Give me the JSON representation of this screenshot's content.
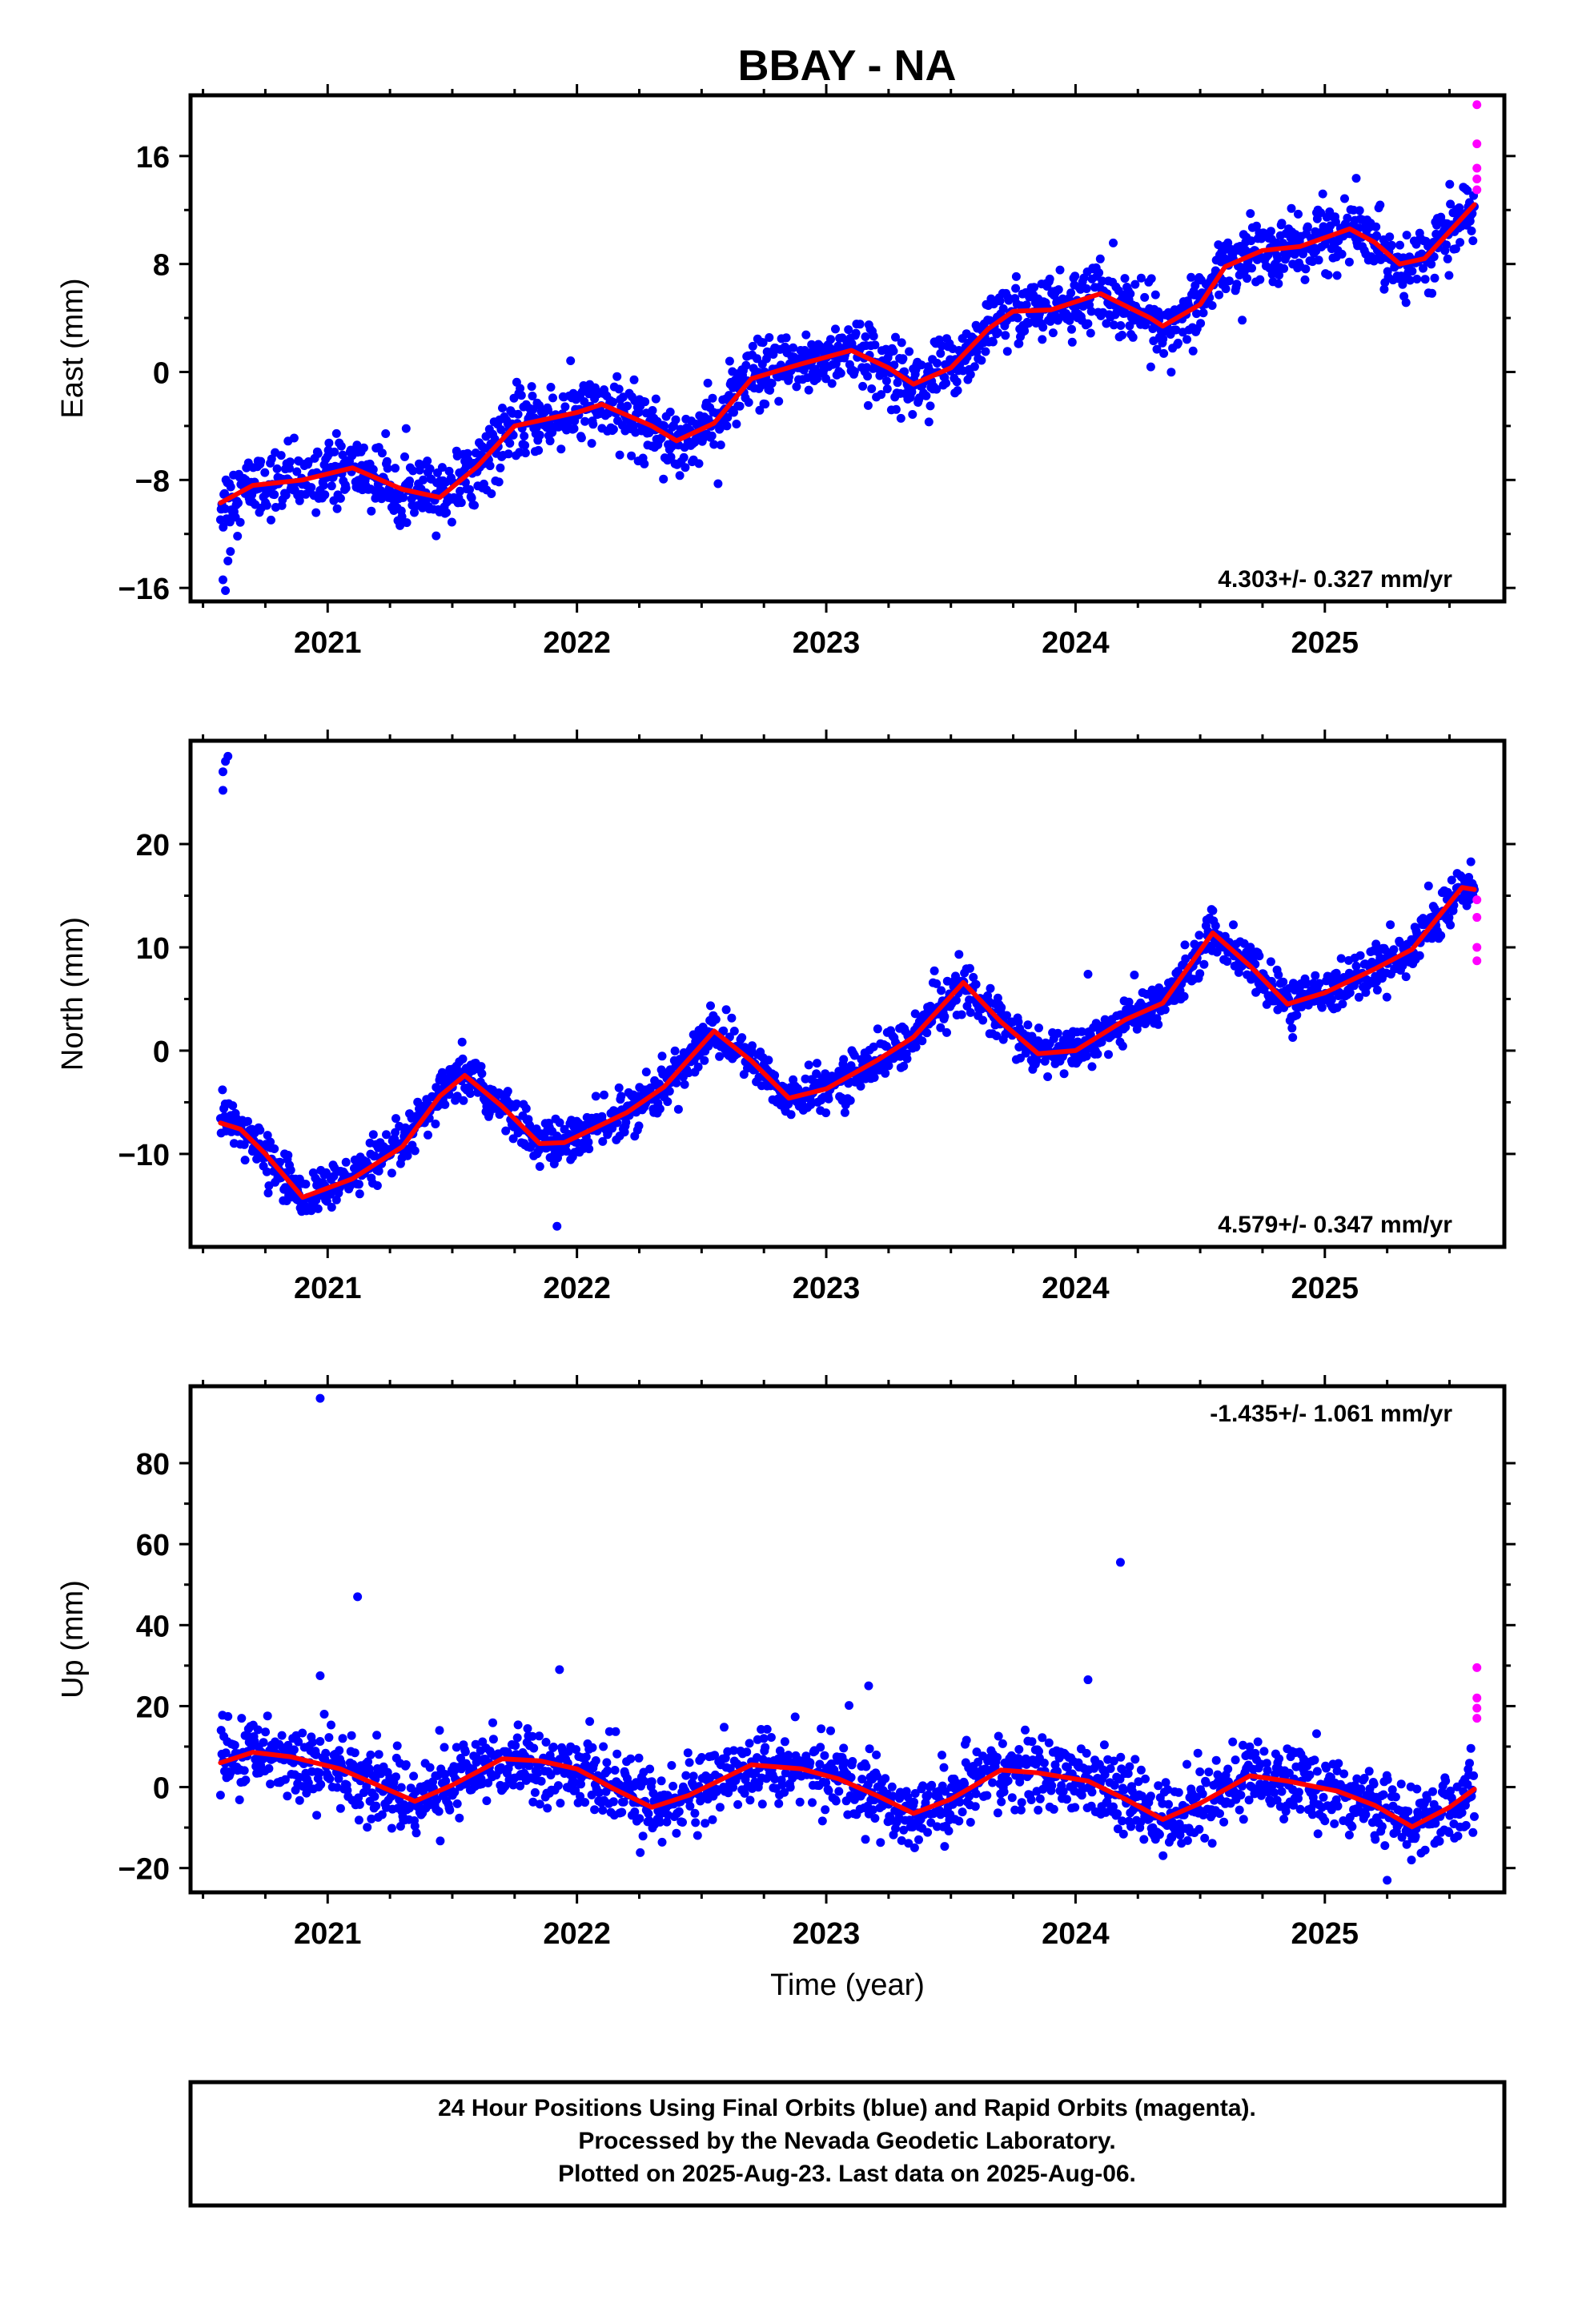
{
  "title": "BBAY - NA",
  "colors": {
    "final": "#0000ff",
    "rapid": "#ff00ff",
    "fit": "#ff0000",
    "frame": "#000000"
  },
  "footer": {
    "line1": "24 Hour Positions Using Final Orbits (blue) and Rapid Orbits (magenta).",
    "line2": "Processed by the Nevada Geodetic Laboratory.",
    "line3": "Plotted on 2025-Aug-23. Last data on 2025-Aug-06."
  },
  "chart_data": [
    {
      "type": "scatter",
      "ylabel": "East (mm)",
      "xlabel": "",
      "xlim": [
        2020.45,
        2025.72
      ],
      "ylim": [
        -17,
        20.5
      ],
      "xticks": [
        2021,
        2022,
        2023,
        2024,
        2025
      ],
      "xtick_labels": [
        "2021",
        "2022",
        "2023",
        "2024",
        "2025"
      ],
      "yticks": [
        -16,
        -8,
        0,
        8,
        16
      ],
      "ytick_labels": [
        "−16",
        "−8",
        "0",
        "8",
        "16"
      ],
      "rate": "4.303+/- 0.327 mm/yr",
      "rate_position": "bottom-right",
      "series_final": {
        "trend": [
          -9.4,
          4.303
        ],
        "amp": 1.8,
        "phase": 0.35,
        "noise": 1.2,
        "start": 2020.57,
        "end": 2025.6,
        "outliers": [
          [
            2020.58,
            -15.4
          ],
          [
            2020.59,
            -16.2
          ],
          [
            2020.6,
            -14.0
          ],
          [
            2020.61,
            -13.3
          ]
        ]
      },
      "series_rapid": [
        [
          2025.61,
          19.8
        ],
        [
          2025.61,
          16.9
        ],
        [
          2025.61,
          15.1
        ],
        [
          2025.61,
          14.3
        ],
        [
          2025.61,
          13.5
        ]
      ],
      "fit": [
        [
          2020.57,
          -9.7
        ],
        [
          2020.7,
          -8.4
        ],
        [
          2020.9,
          -8.0
        ],
        [
          2021.1,
          -7.1
        ],
        [
          2021.3,
          -8.7
        ],
        [
          2021.45,
          -9.3
        ],
        [
          2021.6,
          -7.0
        ],
        [
          2021.75,
          -4.0
        ],
        [
          2022.0,
          -3.0
        ],
        [
          2022.1,
          -2.4
        ],
        [
          2022.3,
          -4.0
        ],
        [
          2022.4,
          -5.1
        ],
        [
          2022.55,
          -3.8
        ],
        [
          2022.7,
          -0.5
        ],
        [
          2022.9,
          0.6
        ],
        [
          2023.1,
          1.6
        ],
        [
          2023.25,
          0.3
        ],
        [
          2023.35,
          -0.9
        ],
        [
          2023.5,
          0.3
        ],
        [
          2023.65,
          3.2
        ],
        [
          2023.75,
          4.5
        ],
        [
          2023.9,
          4.6
        ],
        [
          2024.1,
          5.8
        ],
        [
          2024.3,
          4.0
        ],
        [
          2024.35,
          3.4
        ],
        [
          2024.5,
          5.0
        ],
        [
          2024.6,
          7.8
        ],
        [
          2024.75,
          9.0
        ],
        [
          2024.9,
          9.3
        ],
        [
          2025.1,
          10.6
        ],
        [
          2025.2,
          9.6
        ],
        [
          2025.3,
          8.0
        ],
        [
          2025.4,
          8.4
        ],
        [
          2025.5,
          10.4
        ],
        [
          2025.6,
          12.4
        ]
      ]
    },
    {
      "type": "scatter",
      "ylabel": "North (mm)",
      "xlabel": "",
      "xlim": [
        2020.45,
        2025.72
      ],
      "ylim": [
        -19,
        30
      ],
      "xticks": [
        2021,
        2022,
        2023,
        2024,
        2025
      ],
      "xtick_labels": [
        "2021",
        "2022",
        "2023",
        "2024",
        "2025"
      ],
      "yticks": [
        -10,
        0,
        10,
        20
      ],
      "ytick_labels": [
        "−10",
        "0",
        "10",
        "20"
      ],
      "rate": "4.579+/- 0.347 mm/yr",
      "rate_position": "bottom-right",
      "series_final": {
        "trend": [
          -12.3,
          4.579
        ],
        "amp": 4.0,
        "phase": 0.55,
        "noise": 1.1,
        "start": 2020.57,
        "end": 2025.6,
        "outliers": [
          [
            2020.58,
            27.0
          ],
          [
            2020.59,
            28.0
          ],
          [
            2020.6,
            28.5
          ],
          [
            2020.58,
            25.2
          ],
          [
            2021.92,
            -17.0
          ],
          [
            2024.05,
            7.4
          ]
        ]
      },
      "series_rapid": [
        [
          2025.61,
          14.6
        ],
        [
          2025.61,
          12.9
        ],
        [
          2025.61,
          10.0
        ],
        [
          2025.61,
          8.7
        ]
      ],
      "fit": [
        [
          2020.57,
          -7.0
        ],
        [
          2020.65,
          -7.6
        ],
        [
          2020.75,
          -10.0
        ],
        [
          2020.9,
          -14.2
        ],
        [
          2021.1,
          -12.4
        ],
        [
          2021.3,
          -9.3
        ],
        [
          2021.45,
          -4.4
        ],
        [
          2021.55,
          -2.4
        ],
        [
          2021.7,
          -5.4
        ],
        [
          2021.85,
          -9.0
        ],
        [
          2021.95,
          -8.9
        ],
        [
          2022.2,
          -6.0
        ],
        [
          2022.35,
          -3.5
        ],
        [
          2022.55,
          1.9
        ],
        [
          2022.7,
          -1.0
        ],
        [
          2022.85,
          -4.6
        ],
        [
          2023.0,
          -3.7
        ],
        [
          2023.2,
          -1.0
        ],
        [
          2023.35,
          1.3
        ],
        [
          2023.55,
          6.6
        ],
        [
          2023.7,
          2.8
        ],
        [
          2023.85,
          -0.3
        ],
        [
          2024.0,
          0.0
        ],
        [
          2024.2,
          3.0
        ],
        [
          2024.35,
          4.6
        ],
        [
          2024.55,
          11.4
        ],
        [
          2024.7,
          8.2
        ],
        [
          2024.85,
          4.5
        ],
        [
          2025.0,
          5.6
        ],
        [
          2025.2,
          7.9
        ],
        [
          2025.35,
          9.8
        ],
        [
          2025.55,
          15.8
        ],
        [
          2025.6,
          15.6
        ]
      ]
    },
    {
      "type": "scatter",
      "ylabel": "Up (mm)",
      "xlabel": "Time (year)",
      "xlim": [
        2020.45,
        2025.72
      ],
      "ylim": [
        -26,
        99
      ],
      "xticks": [
        2021,
        2022,
        2023,
        2024,
        2025
      ],
      "xtick_labels": [
        "2021",
        "2022",
        "2023",
        "2024",
        "2025"
      ],
      "yticks": [
        -20,
        0,
        20,
        40,
        60,
        80
      ],
      "ytick_labels": [
        "−20",
        "0",
        "20",
        "40",
        "60",
        "80"
      ],
      "rate": "-1.435+/- 1.061 mm/yr",
      "rate_position": "top-right",
      "series_final": {
        "trend": [
          3.0,
          -1.435
        ],
        "amp": 6.0,
        "phase": 0.6,
        "noise": 4.5,
        "start": 2020.57,
        "end": 2025.6,
        "outliers": [
          [
            2020.97,
            96.0
          ],
          [
            2021.12,
            47.0
          ],
          [
            2021.93,
            29.0
          ],
          [
            2020.97,
            27.5
          ],
          [
            2023.17,
            25.0
          ],
          [
            2024.05,
            26.5
          ],
          [
            2024.18,
            55.5
          ],
          [
            2025.25,
            -23.0
          ]
        ]
      },
      "series_rapid": [
        [
          2025.61,
          29.5
        ],
        [
          2025.61,
          22.0
        ],
        [
          2025.61,
          19.5
        ],
        [
          2025.61,
          17.0
        ]
      ],
      "fit": [
        [
          2020.57,
          6.0
        ],
        [
          2020.7,
          8.6
        ],
        [
          2020.85,
          7.5
        ],
        [
          2021.05,
          4.5
        ],
        [
          2021.2,
          0.5
        ],
        [
          2021.35,
          -3.5
        ],
        [
          2021.5,
          0.5
        ],
        [
          2021.7,
          7.0
        ],
        [
          2021.85,
          6.5
        ],
        [
          2022.0,
          4.5
        ],
        [
          2022.15,
          -0.5
        ],
        [
          2022.3,
          -5.0
        ],
        [
          2022.45,
          -2.0
        ],
        [
          2022.7,
          5.5
        ],
        [
          2022.9,
          4.5
        ],
        [
          2023.05,
          2.0
        ],
        [
          2023.2,
          -2.0
        ],
        [
          2023.35,
          -6.5
        ],
        [
          2023.5,
          -3.0
        ],
        [
          2023.7,
          4.2
        ],
        [
          2023.85,
          3.5
        ],
        [
          2024.05,
          1.5
        ],
        [
          2024.2,
          -3.0
        ],
        [
          2024.35,
          -8.0
        ],
        [
          2024.5,
          -4.0
        ],
        [
          2024.7,
          2.8
        ],
        [
          2024.85,
          1.5
        ],
        [
          2025.05,
          -1.0
        ],
        [
          2025.2,
          -4.5
        ],
        [
          2025.35,
          -9.8
        ],
        [
          2025.5,
          -5.0
        ],
        [
          2025.6,
          -0.5
        ]
      ]
    }
  ]
}
